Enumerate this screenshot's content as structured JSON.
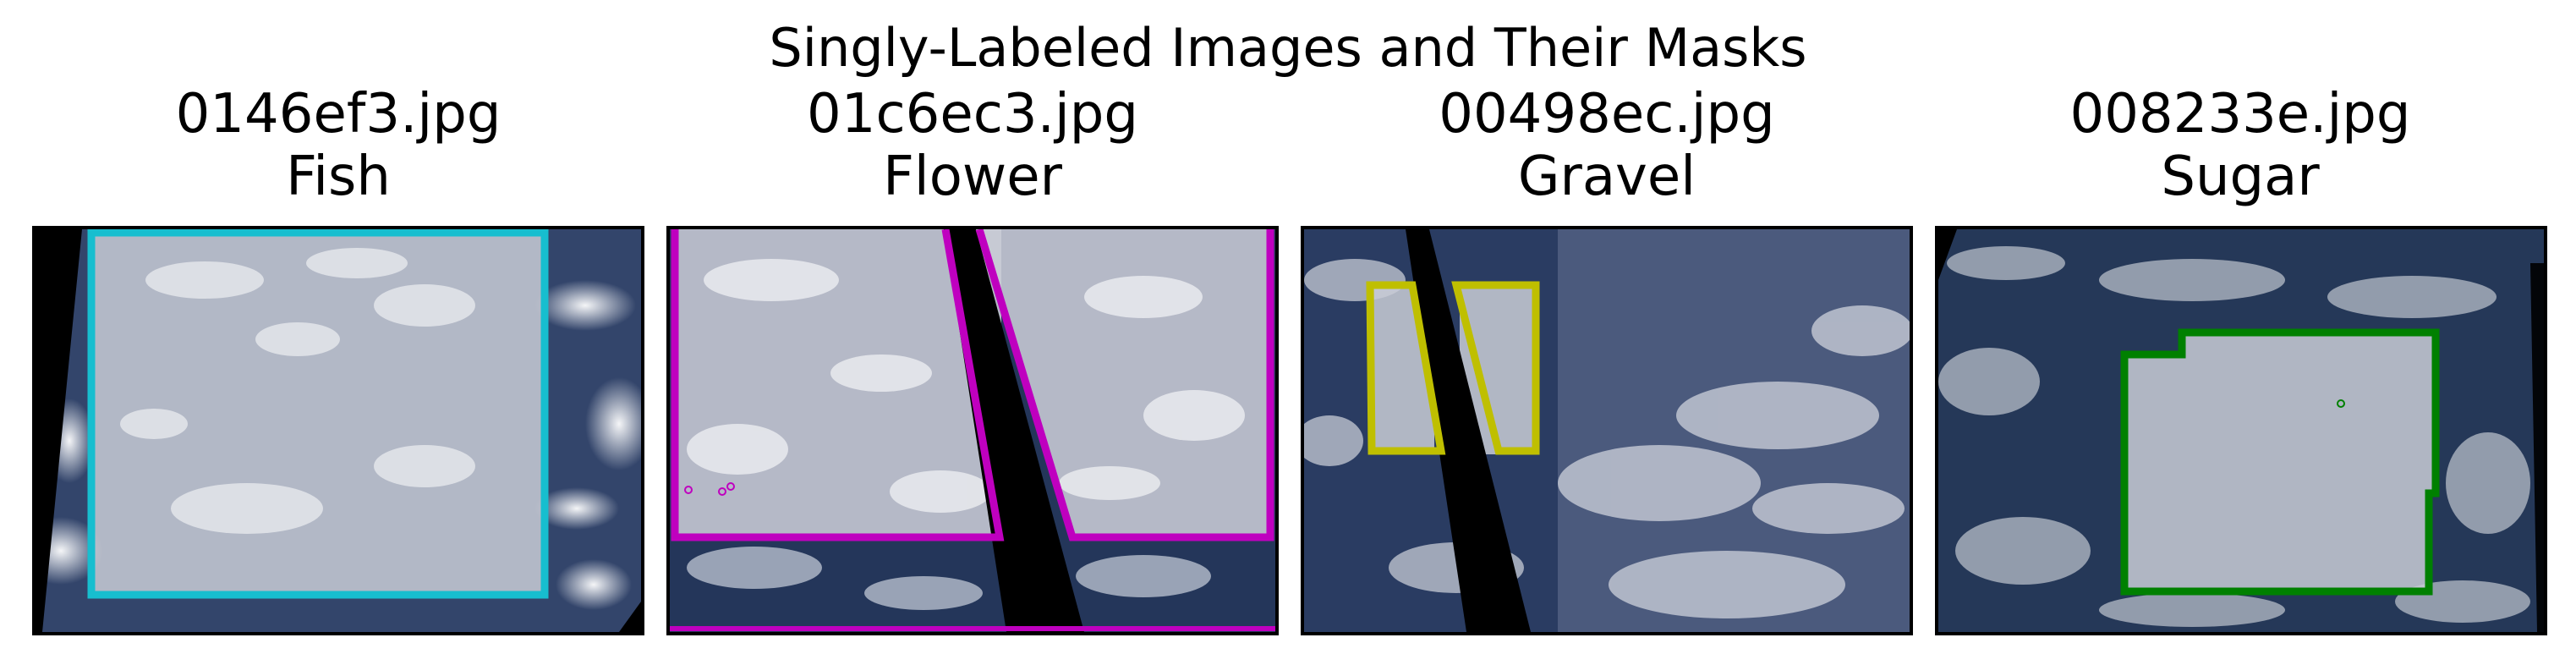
{
  "figure": {
    "suptitle": "Singly-Labeled Images and Their Masks"
  },
  "panels": [
    {
      "filename": "0146ef3.jpg",
      "label": "Fish",
      "mask_color": "#17becf"
    },
    {
      "filename": "01c6ec3.jpg",
      "label": "Flower",
      "mask_color": "#bf00bf"
    },
    {
      "filename": "00498ec.jpg",
      "label": "Gravel",
      "mask_color": "#bfbf00"
    },
    {
      "filename": "008233e.jpg",
      "label": "Sugar",
      "mask_color": "#008000"
    }
  ]
}
